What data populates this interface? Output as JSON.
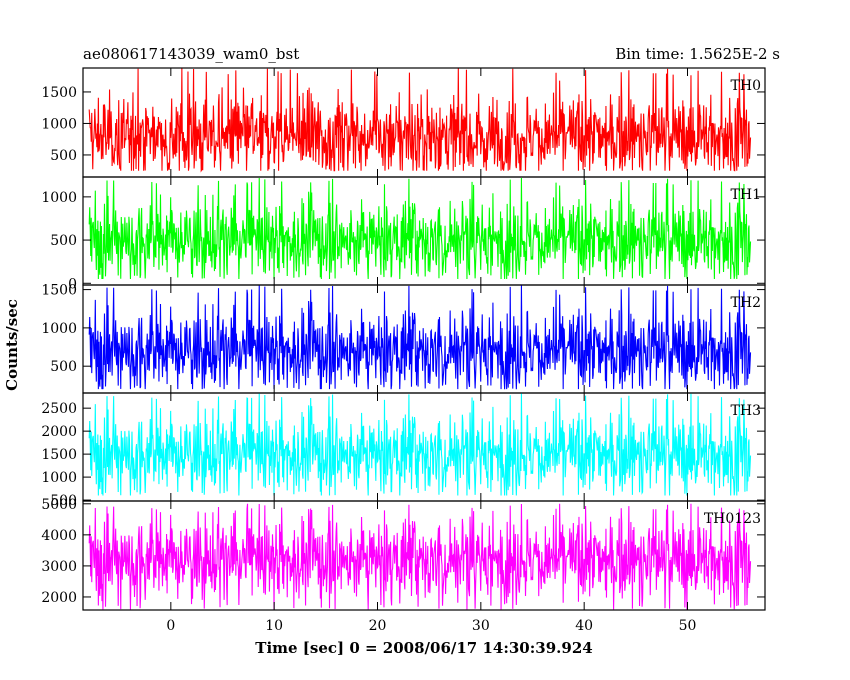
{
  "title_left": "ae080617143039_wam0_bst",
  "title_right": "Bin time: 1.5625E-2 s",
  "chart_data": {
    "type": "line",
    "xlabel": "Time [sec] 0 = 2008/06/17 14:30:39.924",
    "ylabel": "Counts/sec",
    "xlim": [
      -8.5,
      57.5
    ],
    "x_data_range": [
      -7.9,
      56.1
    ],
    "xticks": [
      0,
      10,
      20,
      30,
      40,
      50
    ],
    "panels": [
      {
        "name": "TH0",
        "color": "#ff0000",
        "ylim": [
          150,
          1880
        ],
        "yticks": [
          500,
          1000,
          1500
        ],
        "mean": 800,
        "low": 250,
        "high": 1880
      },
      {
        "name": "TH1",
        "color": "#00ff00",
        "ylim": [
          -20,
          1230
        ],
        "yticks": [
          0,
          500,
          1000
        ],
        "mean": 500,
        "low": 50,
        "high": 1220
      },
      {
        "name": "TH2",
        "color": "#0000ff",
        "ylim": [
          150,
          1560
        ],
        "yticks": [
          500,
          1000,
          1500
        ],
        "mean": 700,
        "low": 200,
        "high": 1560
      },
      {
        "name": "TH3",
        "color": "#00ffff",
        "ylim": [
          480,
          2830
        ],
        "yticks": [
          500,
          1000,
          1500,
          2000,
          2500
        ],
        "mean": 1500,
        "low": 600,
        "high": 2820
      },
      {
        "name": "TH0123",
        "color": "#ff00ff",
        "ylim": [
          1580,
          5090
        ],
        "yticks": [
          2000,
          3000,
          4000,
          5000
        ],
        "mean": 3200,
        "low": 1600,
        "high": 5000
      }
    ]
  }
}
